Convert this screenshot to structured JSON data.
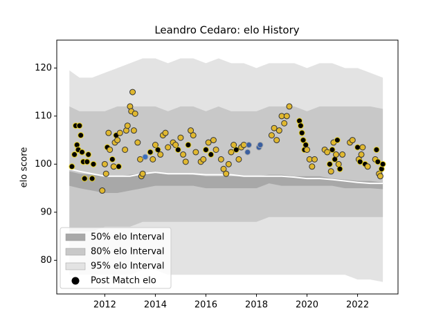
{
  "chart_data": {
    "type": "band_scatter",
    "title": "Leandro Cedaro: elo History",
    "ylabel": "elo score",
    "xlim": [
      2010.1,
      2023.6
    ],
    "xticks": [
      2012,
      2014,
      2016,
      2018,
      2020,
      2022
    ],
    "ylim": [
      73,
      125.8
    ],
    "yticks": [
      80,
      90,
      100,
      110,
      120
    ],
    "x": [
      2010.6,
      2011,
      2011.5,
      2012,
      2012.5,
      2013,
      2013.5,
      2014,
      2014.5,
      2015,
      2015.5,
      2016,
      2016.5,
      2017,
      2017.5,
      2018,
      2018.5,
      2019,
      2019.5,
      2020,
      2020.5,
      2021,
      2021.5,
      2022,
      2022.5,
      2023
    ],
    "bands": [
      {
        "name": "95% elo Interval",
        "color": "#e3e3e3",
        "upper": [
          119.5,
          118,
          118,
          119,
          120,
          121,
          122,
          122,
          121,
          122,
          122,
          121,
          122,
          121,
          121,
          120,
          121,
          121,
          121,
          120,
          121,
          121,
          120,
          120,
          119,
          118
        ],
        "lower": [
          77,
          77,
          77,
          77,
          77,
          77,
          78,
          78,
          77,
          77,
          77,
          77,
          77,
          77,
          77,
          77,
          77,
          77,
          77,
          77,
          77,
          77,
          77,
          76,
          76,
          75.5
        ]
      },
      {
        "name": "80% elo Interval",
        "color": "#c8c8c8",
        "upper": [
          112,
          111,
          111,
          111,
          112,
          112,
          112,
          112,
          111,
          112,
          112,
          111,
          112,
          111,
          111,
          111,
          112,
          112,
          112,
          111,
          112,
          112,
          112,
          112,
          112,
          111.5
        ],
        "lower": [
          86,
          86,
          86,
          87,
          87,
          87,
          88,
          88,
          88,
          88,
          88,
          88,
          88,
          88,
          88,
          88,
          89,
          89,
          89,
          89,
          89,
          89,
          89,
          89,
          89,
          89
        ]
      },
      {
        "name": "50% elo Interval",
        "color": "#a8a8a8",
        "upper": [
          98.5,
          98,
          97.8,
          97.5,
          97.5,
          97.8,
          98,
          98.5,
          98,
          98,
          97.8,
          97.5,
          97.5,
          97.5,
          97.5,
          97.5,
          97.8,
          97.8,
          97.5,
          97.5,
          97.5,
          97,
          96.8,
          96.5,
          96.5,
          96.2
        ],
        "lower": [
          95.5,
          95,
          94.5,
          94,
          94,
          94.5,
          95,
          95.5,
          95.5,
          95.5,
          95.5,
          95,
          95,
          95,
          95,
          95,
          96,
          95.5,
          95.5,
          95.5,
          95.5,
          95.5,
          95,
          95,
          95,
          94.8
        ]
      }
    ],
    "line": {
      "color": "#ffffff",
      "values": [
        99,
        98.5,
        98,
        97.5,
        97.5,
        97.5,
        98,
        98.3,
        98,
        98,
        98,
        97.8,
        97.8,
        97.8,
        97.5,
        97.5,
        97.5,
        97.5,
        97.3,
        97,
        97,
        96.8,
        96.5,
        96.2,
        96,
        96
      ]
    },
    "points_name": "Post Match elo",
    "legend_marker_color": "#000000",
    "legend": "lower left",
    "points": [
      {
        "x": 2010.7,
        "y": 99.5,
        "color": "#000000",
        "edge": "#e8d020"
      },
      {
        "x": 2010.8,
        "y": 102,
        "color": "#000000",
        "edge": "#e8d020"
      },
      {
        "x": 2010.85,
        "y": 108,
        "color": "#000000",
        "edge": "#e8d020"
      },
      {
        "x": 2010.9,
        "y": 104,
        "color": "#000000",
        "edge": "#e8d020"
      },
      {
        "x": 2010.95,
        "y": 103,
        "color": "#000000",
        "edge": "#e8d020"
      },
      {
        "x": 2011.0,
        "y": 108,
        "color": "#000000",
        "edge": "#e8d020"
      },
      {
        "x": 2011.05,
        "y": 106,
        "color": "#000000",
        "edge": "#e8d020"
      },
      {
        "x": 2011.1,
        "y": 102.5,
        "color": "#000000",
        "edge": "#e8d020"
      },
      {
        "x": 2011.15,
        "y": 100.5,
        "color": "#000000",
        "edge": "#e8d020"
      },
      {
        "x": 2011.2,
        "y": 97,
        "color": "#000000",
        "edge": "#e8d020"
      },
      {
        "x": 2011.3,
        "y": 100.5,
        "color": "#000000",
        "edge": "#e8d020"
      },
      {
        "x": 2011.35,
        "y": 102,
        "color": "#000000",
        "edge": "#e8d020"
      },
      {
        "x": 2011.5,
        "y": 97,
        "color": "#000000",
        "edge": "#e8d020"
      },
      {
        "x": 2011.55,
        "y": 100,
        "color": "#000000",
        "edge": "#e8d020"
      },
      {
        "x": 2011.9,
        "y": 94.5,
        "color": "#e0b830",
        "edge": "#333333"
      },
      {
        "x": 2012.0,
        "y": 100,
        "color": "#e0b830",
        "edge": "#333333"
      },
      {
        "x": 2012.05,
        "y": 98,
        "color": "#e0b830",
        "edge": "#333333"
      },
      {
        "x": 2012.1,
        "y": 103.5,
        "color": "#000000",
        "edge": "#e8d020"
      },
      {
        "x": 2012.15,
        "y": 106.5,
        "color": "#e0b830",
        "edge": "#333333"
      },
      {
        "x": 2012.2,
        "y": 103,
        "color": "#e0b830",
        "edge": "#333333"
      },
      {
        "x": 2012.3,
        "y": 101,
        "color": "#000000",
        "edge": "#e8d020"
      },
      {
        "x": 2012.35,
        "y": 99.5,
        "color": "#e0b830",
        "edge": "#333333"
      },
      {
        "x": 2012.4,
        "y": 104.5,
        "color": "#e0b830",
        "edge": "#333333"
      },
      {
        "x": 2012.45,
        "y": 106,
        "color": "#000000",
        "edge": "#e8d020"
      },
      {
        "x": 2012.5,
        "y": 105,
        "color": "#e0b830",
        "edge": "#333333"
      },
      {
        "x": 2012.55,
        "y": 99.5,
        "color": "#000000",
        "edge": "#e8d020"
      },
      {
        "x": 2012.6,
        "y": 106.5,
        "color": "#e0b830",
        "edge": "#333333"
      },
      {
        "x": 2012.8,
        "y": 103,
        "color": "#e0b830",
        "edge": "#333333"
      },
      {
        "x": 2012.85,
        "y": 107,
        "color": "#e0b830",
        "edge": "#333333"
      },
      {
        "x": 2012.9,
        "y": 108,
        "color": "#e0b830",
        "edge": "#333333"
      },
      {
        "x": 2013.0,
        "y": 112,
        "color": "#e0b830",
        "edge": "#333333"
      },
      {
        "x": 2013.05,
        "y": 111,
        "color": "#e0b830",
        "edge": "#333333"
      },
      {
        "x": 2013.1,
        "y": 115,
        "color": "#e0b830",
        "edge": "#333333"
      },
      {
        "x": 2013.15,
        "y": 107,
        "color": "#e0b830",
        "edge": "#333333"
      },
      {
        "x": 2013.2,
        "y": 110.5,
        "color": "#e0b830",
        "edge": "#333333"
      },
      {
        "x": 2013.3,
        "y": 104.5,
        "color": "#e0b830",
        "edge": "#333333"
      },
      {
        "x": 2013.4,
        "y": 101,
        "color": "#e0b830",
        "edge": "#333333"
      },
      {
        "x": 2013.45,
        "y": 97.5,
        "color": "#e0b830",
        "edge": "#333333"
      },
      {
        "x": 2013.5,
        "y": 98,
        "color": "#e0b830",
        "edge": "#333333"
      },
      {
        "x": 2013.6,
        "y": 101.5,
        "color": "#3a6fc0",
        "edge": "#aaaaaa"
      },
      {
        "x": 2013.8,
        "y": 102.5,
        "color": "#000000",
        "edge": "#e8d020"
      },
      {
        "x": 2013.9,
        "y": 101,
        "color": "#e0b830",
        "edge": "#333333"
      },
      {
        "x": 2014.0,
        "y": 104,
        "color": "#e0b830",
        "edge": "#333333"
      },
      {
        "x": 2014.1,
        "y": 103,
        "color": "#000000",
        "edge": "#e8d020"
      },
      {
        "x": 2014.2,
        "y": 102,
        "color": "#e0b830",
        "edge": "#333333"
      },
      {
        "x": 2014.3,
        "y": 106,
        "color": "#e0b830",
        "edge": "#333333"
      },
      {
        "x": 2014.4,
        "y": 106.5,
        "color": "#e0b830",
        "edge": "#333333"
      },
      {
        "x": 2014.5,
        "y": 103.5,
        "color": "#e0b830",
        "edge": "#333333"
      },
      {
        "x": 2014.7,
        "y": 104.5,
        "color": "#e0b830",
        "edge": "#333333"
      },
      {
        "x": 2014.8,
        "y": 104,
        "color": "#e0b830",
        "edge": "#333333"
      },
      {
        "x": 2014.9,
        "y": 103,
        "color": "#000000",
        "edge": "#e8d020"
      },
      {
        "x": 2015.0,
        "y": 105.5,
        "color": "#e0b830",
        "edge": "#333333"
      },
      {
        "x": 2015.1,
        "y": 102,
        "color": "#e0b830",
        "edge": "#333333"
      },
      {
        "x": 2015.2,
        "y": 100.5,
        "color": "#e0b830",
        "edge": "#333333"
      },
      {
        "x": 2015.3,
        "y": 104,
        "color": "#000000",
        "edge": "#e8d020"
      },
      {
        "x": 2015.4,
        "y": 107,
        "color": "#e0b830",
        "edge": "#333333"
      },
      {
        "x": 2015.5,
        "y": 106,
        "color": "#e0b830",
        "edge": "#333333"
      },
      {
        "x": 2015.6,
        "y": 102.5,
        "color": "#e0b830",
        "edge": "#333333"
      },
      {
        "x": 2015.8,
        "y": 100.5,
        "color": "#e0b830",
        "edge": "#333333"
      },
      {
        "x": 2015.9,
        "y": 101,
        "color": "#e0b830",
        "edge": "#333333"
      },
      {
        "x": 2016.0,
        "y": 103,
        "color": "#000000",
        "edge": "#e8d020"
      },
      {
        "x": 2016.1,
        "y": 104.5,
        "color": "#e0b830",
        "edge": "#333333"
      },
      {
        "x": 2016.2,
        "y": 102,
        "color": "#000000",
        "edge": "#e8d020"
      },
      {
        "x": 2016.3,
        "y": 105,
        "color": "#e0b830",
        "edge": "#333333"
      },
      {
        "x": 2016.4,
        "y": 103,
        "color": "#e0b830",
        "edge": "#333333"
      },
      {
        "x": 2016.6,
        "y": 101,
        "color": "#e0b830",
        "edge": "#333333"
      },
      {
        "x": 2016.7,
        "y": 99,
        "color": "#e0b830",
        "edge": "#333333"
      },
      {
        "x": 2016.8,
        "y": 98,
        "color": "#e0b830",
        "edge": "#333333"
      },
      {
        "x": 2016.9,
        "y": 100,
        "color": "#e0b830",
        "edge": "#333333"
      },
      {
        "x": 2017.0,
        "y": 102.5,
        "color": "#e0b830",
        "edge": "#333333"
      },
      {
        "x": 2017.1,
        "y": 104,
        "color": "#e0b830",
        "edge": "#333333"
      },
      {
        "x": 2017.2,
        "y": 103,
        "color": "#000000",
        "edge": "#e8d020"
      },
      {
        "x": 2017.3,
        "y": 101,
        "color": "#e0b830",
        "edge": "#333333"
      },
      {
        "x": 2017.4,
        "y": 103.5,
        "color": "#e0b830",
        "edge": "#333333"
      },
      {
        "x": 2017.5,
        "y": 104,
        "color": "#e0b830",
        "edge": "#333333"
      },
      {
        "x": 2017.65,
        "y": 102.5,
        "color": "#3a5fa0",
        "edge": "#aaaaaa"
      },
      {
        "x": 2017.7,
        "y": 104,
        "color": "#3a5fa0",
        "edge": "#aaaaaa"
      },
      {
        "x": 2018.1,
        "y": 103.5,
        "color": "#3a5fa0",
        "edge": "#aaaaaa"
      },
      {
        "x": 2018.15,
        "y": 104,
        "color": "#3a5fa0",
        "edge": "#aaaaaa"
      },
      {
        "x": 2018.6,
        "y": 106,
        "color": "#e0b830",
        "edge": "#333333"
      },
      {
        "x": 2018.7,
        "y": 107.5,
        "color": "#e0b830",
        "edge": "#333333"
      },
      {
        "x": 2018.8,
        "y": 105,
        "color": "#e0b830",
        "edge": "#333333"
      },
      {
        "x": 2018.9,
        "y": 107,
        "color": "#e0b830",
        "edge": "#333333"
      },
      {
        "x": 2019.0,
        "y": 110,
        "color": "#e0b830",
        "edge": "#333333"
      },
      {
        "x": 2019.1,
        "y": 108.5,
        "color": "#e0b830",
        "edge": "#333333"
      },
      {
        "x": 2019.2,
        "y": 110,
        "color": "#e0b830",
        "edge": "#333333"
      },
      {
        "x": 2019.3,
        "y": 112,
        "color": "#e0b830",
        "edge": "#333333"
      },
      {
        "x": 2019.7,
        "y": 109,
        "color": "#000000",
        "edge": "#e8d020"
      },
      {
        "x": 2019.75,
        "y": 108,
        "color": "#000000",
        "edge": "#e8d020"
      },
      {
        "x": 2019.8,
        "y": 106.5,
        "color": "#000000",
        "edge": "#e8d020"
      },
      {
        "x": 2019.85,
        "y": 105,
        "color": "#000000",
        "edge": "#e8d020"
      },
      {
        "x": 2019.9,
        "y": 103,
        "color": "#000000",
        "edge": "#e8d020"
      },
      {
        "x": 2019.95,
        "y": 104,
        "color": "#000000",
        "edge": "#e8d020"
      },
      {
        "x": 2020.0,
        "y": 103,
        "color": "#e0b830",
        "edge": "#333333"
      },
      {
        "x": 2020.1,
        "y": 101,
        "color": "#e0b830",
        "edge": "#333333"
      },
      {
        "x": 2020.2,
        "y": 99.5,
        "color": "#e0b830",
        "edge": "#333333"
      },
      {
        "x": 2020.3,
        "y": 101,
        "color": "#e0b830",
        "edge": "#333333"
      },
      {
        "x": 2020.7,
        "y": 103,
        "color": "#e0b830",
        "edge": "#333333"
      },
      {
        "x": 2020.8,
        "y": 102.5,
        "color": "#e0b830",
        "edge": "#333333"
      },
      {
        "x": 2020.9,
        "y": 100,
        "color": "#000000",
        "edge": "#e8d020"
      },
      {
        "x": 2020.95,
        "y": 98.5,
        "color": "#e0b830",
        "edge": "#333333"
      },
      {
        "x": 2021.0,
        "y": 103,
        "color": "#000000",
        "edge": "#e8d020"
      },
      {
        "x": 2021.05,
        "y": 104.5,
        "color": "#e0b830",
        "edge": "#333333"
      },
      {
        "x": 2021.1,
        "y": 101,
        "color": "#000000",
        "edge": "#e8d020"
      },
      {
        "x": 2021.15,
        "y": 102,
        "color": "#e0b830",
        "edge": "#333333"
      },
      {
        "x": 2021.2,
        "y": 105,
        "color": "#000000",
        "edge": "#e8d020"
      },
      {
        "x": 2021.25,
        "y": 100,
        "color": "#e0b830",
        "edge": "#333333"
      },
      {
        "x": 2021.3,
        "y": 99,
        "color": "#000000",
        "edge": "#e8d020"
      },
      {
        "x": 2021.4,
        "y": 102,
        "color": "#e0b830",
        "edge": "#333333"
      },
      {
        "x": 2021.7,
        "y": 104.5,
        "color": "#e0b830",
        "edge": "#333333"
      },
      {
        "x": 2021.8,
        "y": 105,
        "color": "#e0b830",
        "edge": "#333333"
      },
      {
        "x": 2022.0,
        "y": 103.5,
        "color": "#000000",
        "edge": "#e8d020"
      },
      {
        "x": 2022.05,
        "y": 101,
        "color": "#e0b830",
        "edge": "#333333"
      },
      {
        "x": 2022.1,
        "y": 100.5,
        "color": "#000000",
        "edge": "#e8d020"
      },
      {
        "x": 2022.15,
        "y": 102,
        "color": "#e0b830",
        "edge": "#333333"
      },
      {
        "x": 2022.2,
        "y": 103.5,
        "color": "#e0b830",
        "edge": "#333333"
      },
      {
        "x": 2022.3,
        "y": 100,
        "color": "#000000",
        "edge": "#e8d020"
      },
      {
        "x": 2022.4,
        "y": 99.5,
        "color": "#e0b830",
        "edge": "#333333"
      },
      {
        "x": 2022.7,
        "y": 101,
        "color": "#e0b830",
        "edge": "#333333"
      },
      {
        "x": 2022.75,
        "y": 103,
        "color": "#000000",
        "edge": "#e8d020"
      },
      {
        "x": 2022.8,
        "y": 100.5,
        "color": "#000000",
        "edge": "#e8d020"
      },
      {
        "x": 2022.85,
        "y": 98,
        "color": "#e0b830",
        "edge": "#333333"
      },
      {
        "x": 2022.9,
        "y": 97.5,
        "color": "#e0b830",
        "edge": "#333333"
      },
      {
        "x": 2022.95,
        "y": 99,
        "color": "#000000",
        "edge": "#e8d020"
      },
      {
        "x": 2023.0,
        "y": 100,
        "color": "#000000",
        "edge": "#e8d020"
      }
    ]
  }
}
